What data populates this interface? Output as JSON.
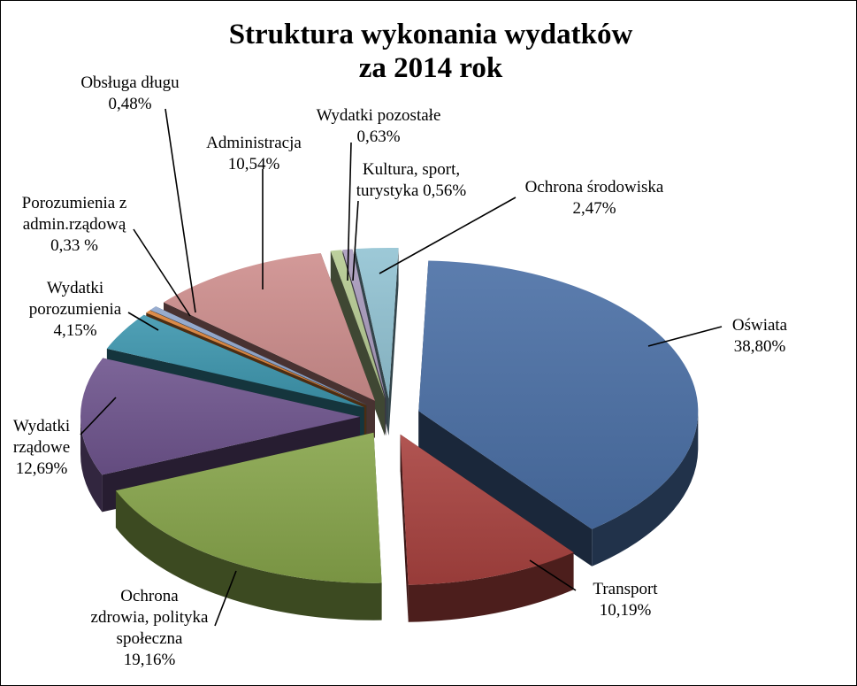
{
  "chart_data": {
    "type": "pie",
    "style": "3d-exploded",
    "title": [
      "Struktura wykonania wydatków",
      "za 2014 rok"
    ],
    "slices": [
      {
        "name": "Oświata",
        "value": 38.8,
        "label": [
          "Oświata",
          "38,80%"
        ],
        "color": "#4A6FA5"
      },
      {
        "name": "Transport",
        "value": 10.19,
        "label": [
          "Transport",
          "10,19%"
        ],
        "color": "#A8423F"
      },
      {
        "name": "Ochrona zdrowia, polityka społeczna",
        "value": 19.16,
        "label": [
          "Ochrona",
          "zdrowia, polityka",
          "społeczna",
          "19,16%"
        ],
        "color": "#86A44A"
      },
      {
        "name": "Wydatki rządowe",
        "value": 12.69,
        "label": [
          "Wydatki",
          "rządowe",
          "12,69%"
        ],
        "color": "#6E548D"
      },
      {
        "name": "Wydatki porozumienia",
        "value": 4.15,
        "label": [
          "Wydatki",
          "porozumienia",
          "4,15%"
        ],
        "color": "#3D96AE"
      },
      {
        "name": "Porozumienia z admin.rządową",
        "value": 0.33,
        "label": [
          "Porozumienia z",
          "admin.rządową",
          "0,33 %"
        ],
        "color": "#DA8137"
      },
      {
        "name": "Obsługa długu",
        "value": 0.48,
        "label": [
          "Obsługa długu",
          "0,48%"
        ],
        "color": "#8EA5CB"
      },
      {
        "name": "Administracja",
        "value": 10.54,
        "label": [
          "Administracja",
          "10,54%"
        ],
        "color": "#CE8E8D"
      },
      {
        "name": "Wydatki pozostałe",
        "value": 0.63,
        "label": [
          "Wydatki  pozostałe",
          "0,63%"
        ],
        "color": "#B5CA92"
      },
      {
        "name": "Kultura, sport, turystyka",
        "value": 0.56,
        "label": [
          "Kultura, sport,",
          "turystyka  0,56%"
        ],
        "color": "#A99BBD"
      },
      {
        "name": "Ochrona środowiska",
        "value": 2.47,
        "label": [
          "Ochrona środowiska",
          "2,47%"
        ],
        "color": "#92C3D3"
      }
    ],
    "legend": "none"
  }
}
